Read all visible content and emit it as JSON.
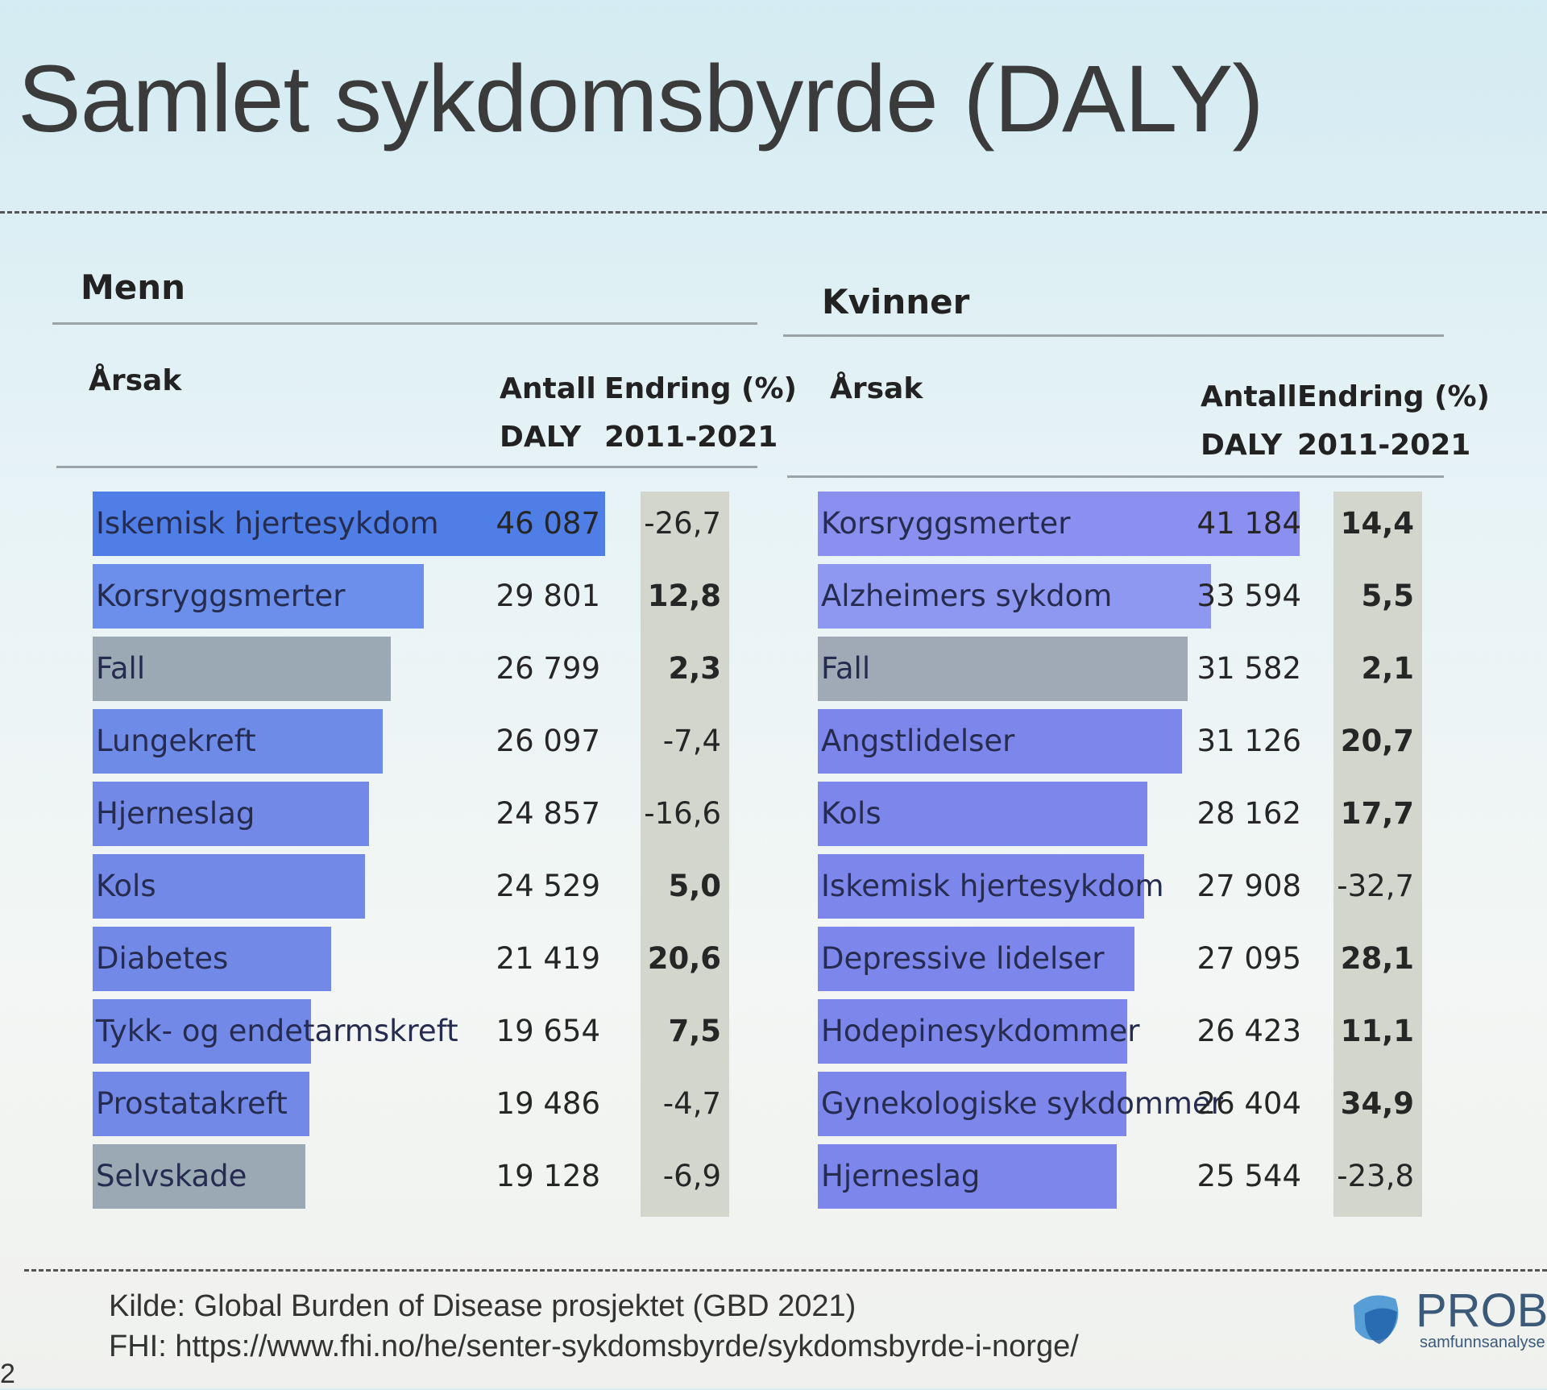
{
  "title": "Samlet sykdomsbyrde (DALY)",
  "chart_data": [
    {
      "type": "bar",
      "orientation": "horizontal",
      "panel_title": "Menn",
      "columns": {
        "cause": "Årsak",
        "count_line1": "Antall",
        "count_line2": "DALY",
        "change_line1": "Endring (%)",
        "change_line2": "2011-2021"
      },
      "rows": [
        {
          "label": "Iskemisk hjertesykdom",
          "value": 46087,
          "value_text": "46 087",
          "change": -26.7,
          "change_text": "-26,7",
          "color": "#4f7ee6"
        },
        {
          "label": "Korsryggsmerter",
          "value": 29801,
          "value_text": "29 801",
          "change": 12.8,
          "change_text": "12,8",
          "color": "#6b8fea"
        },
        {
          "label": "Fall",
          "value": 26799,
          "value_text": "26 799",
          "change": 2.3,
          "change_text": "2,3",
          "color": "#9ba9b4"
        },
        {
          "label": "Lungekreft",
          "value": 26097,
          "value_text": "26 097",
          "change": -7.4,
          "change_text": "-7,4",
          "color": "#6e8be8"
        },
        {
          "label": "Hjerneslag",
          "value": 24857,
          "value_text": "24 857",
          "change": -16.6,
          "change_text": "-16,6",
          "color": "#7289e8"
        },
        {
          "label": "Kols",
          "value": 24529,
          "value_text": "24 529",
          "change": 5.0,
          "change_text": "5,0",
          "color": "#7289e8"
        },
        {
          "label": "Diabetes",
          "value": 21419,
          "value_text": "21 419",
          "change": 20.6,
          "change_text": "20,6",
          "color": "#7289e8"
        },
        {
          "label": "Tykk- og endetarmskreft",
          "value": 19654,
          "value_text": "19 654",
          "change": 7.5,
          "change_text": "7,5",
          "color": "#7289e8"
        },
        {
          "label": "Prostatakreft",
          "value": 19486,
          "value_text": "19 486",
          "change": -4.7,
          "change_text": "-4,7",
          "color": "#7289e8"
        },
        {
          "label": "Selvskade",
          "value": 19128,
          "value_text": "19 128",
          "change": -6.9,
          "change_text": "-6,9",
          "color": "#9ba9b4"
        }
      ],
      "bold_changes": [
        "12,8",
        "2,3",
        "5,0",
        "20,6",
        "7,5"
      ]
    },
    {
      "type": "bar",
      "orientation": "horizontal",
      "panel_title": "Kvinner",
      "columns": {
        "cause": "Årsak",
        "count_line1": "Antall",
        "count_line2": "DALY",
        "change_line1": "Endring (%)",
        "change_line2": "2011-2021"
      },
      "rows": [
        {
          "label": "Korsryggsmerter",
          "value": 41184,
          "value_text": "41 184",
          "change": 14.4,
          "change_text": "14,4",
          "color": "#8a8ff0"
        },
        {
          "label": "Alzheimers sykdom",
          "value": 33594,
          "value_text": "33 594",
          "change": 5.5,
          "change_text": "5,5",
          "color": "#8f98f0"
        },
        {
          "label": "Fall",
          "value": 31582,
          "value_text": "31 582",
          "change": 2.1,
          "change_text": "2,1",
          "color": "#a0a9b6"
        },
        {
          "label": "Angstlidelser",
          "value": 31126,
          "value_text": "31 126",
          "change": 20.7,
          "change_text": "20,7",
          "color": "#7d86ea"
        },
        {
          "label": "Kols",
          "value": 28162,
          "value_text": "28 162",
          "change": 17.7,
          "change_text": "17,7",
          "color": "#7d86ea"
        },
        {
          "label": "Iskemisk hjertesykdom",
          "value": 27908,
          "value_text": "27 908",
          "change": -32.7,
          "change_text": "-32,7",
          "color": "#7d86ea"
        },
        {
          "label": "Depressive lidelser",
          "value": 27095,
          "value_text": "27 095",
          "change": 28.1,
          "change_text": "28,1",
          "color": "#7d86ea"
        },
        {
          "label": "Hodepinesykdommer",
          "value": 26423,
          "value_text": "26 423",
          "change": 11.1,
          "change_text": "11,1",
          "color": "#7d86ea"
        },
        {
          "label": "Gynekologiske sykdommer",
          "value": 26404,
          "value_text": "26 404",
          "change": 34.9,
          "change_text": "34,9",
          "color": "#7d86ea"
        },
        {
          "label": "Hjerneslag",
          "value": 25544,
          "value_text": "25 544",
          "change": -23.8,
          "change_text": "-23,8",
          "color": "#7d86ea"
        }
      ],
      "bold_changes": [
        "14,4",
        "5,5",
        "2,1",
        "20,7",
        "17,7",
        "28,1",
        "11,1",
        "34,9"
      ]
    }
  ],
  "footer": {
    "source_line1": "Kilde: Global Burden of Disease prosjektet (GBD 2021)",
    "source_line2": "FHI: https://www.fhi.no/he/senter-sykdomsbyrde/sykdomsbyrde-i-norge/",
    "logo_text": "PROBA",
    "logo_sub": "samfunnsanalyse",
    "page_number": "2"
  }
}
